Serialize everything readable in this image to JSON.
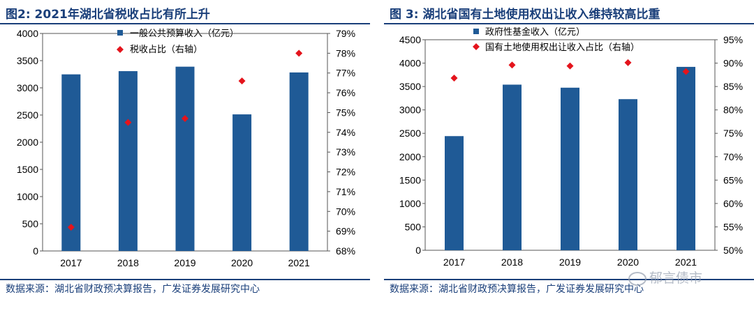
{
  "colors": {
    "bar": "#1f5a96",
    "marker": "#e4141c",
    "title": "#1a3f7a",
    "axis": "#555555"
  },
  "left": {
    "title": "图2: 2021年湖北省税收占比有所上升",
    "source": "数据来源：湖北省财政预决算报告，广发证券发展研究中心",
    "legend": {
      "bar_label": "一般公共预算收入（亿元）",
      "marker_label": "税收占比（右轴）"
    }
  },
  "right": {
    "title": "图 3: 湖北省国有土地使用权出让收入维持较高比重",
    "source": "数据来源：湖北省财政预决算报告，广发证券发展研究中心",
    "legend": {
      "bar_label": "政府性基金收入（亿元）",
      "marker_label": "国有土地使用权出让收入占比（右轴）"
    },
    "watermark": "郁言债市"
  },
  "chart_data": [
    {
      "type": "bar",
      "title": "2021年湖北省税收占比有所上升",
      "categories": [
        "2017",
        "2018",
        "2019",
        "2020",
        "2021"
      ],
      "series": [
        {
          "name": "一般公共预算收入（亿元）",
          "axis": "left",
          "kind": "bar",
          "values": [
            3248,
            3307,
            3389,
            2512,
            3283
          ]
        },
        {
          "name": "税收占比（右轴）",
          "axis": "right",
          "kind": "scatter",
          "values": [
            69.2,
            74.5,
            74.7,
            76.6,
            78.0
          ]
        }
      ],
      "ylim": [
        0,
        4000
      ],
      "yticks": [
        0,
        500,
        1000,
        1500,
        2000,
        2500,
        3000,
        3500,
        4000
      ],
      "y2lim": [
        68,
        79
      ],
      "y2ticks": [
        68,
        69,
        70,
        71,
        72,
        73,
        74,
        75,
        76,
        77,
        78,
        79
      ],
      "y2_suffix": "%",
      "legend_position": "top-left"
    },
    {
      "type": "bar",
      "title": "湖北省国有土地使用权出让收入维持较高比重",
      "categories": [
        "2017",
        "2018",
        "2019",
        "2020",
        "2021"
      ],
      "series": [
        {
          "name": "政府性基金收入（亿元）",
          "axis": "left",
          "kind": "bar",
          "values": [
            2440,
            3540,
            3475,
            3230,
            3920
          ]
        },
        {
          "name": "国有土地使用权出让收入占比（右轴）",
          "axis": "right",
          "kind": "scatter",
          "values": [
            86.8,
            89.6,
            89.4,
            90.1,
            88.2
          ]
        }
      ],
      "ylim": [
        0,
        4500
      ],
      "yticks": [
        0,
        500,
        1000,
        1500,
        2000,
        2500,
        3000,
        3500,
        4000,
        4500
      ],
      "y2lim": [
        50,
        95
      ],
      "y2ticks": [
        50,
        55,
        60,
        65,
        70,
        75,
        80,
        85,
        90,
        95
      ],
      "y2_suffix": "%",
      "legend_position": "top-left"
    }
  ]
}
